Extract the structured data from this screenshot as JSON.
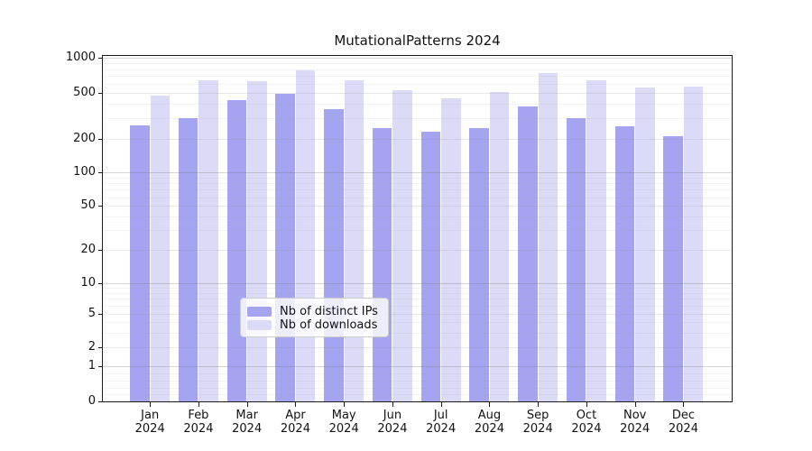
{
  "chart_data": {
    "type": "bar",
    "title": "MutationalPatterns 2024",
    "categories": [
      "Jan",
      "Feb",
      "Mar",
      "Apr",
      "May",
      "Jun",
      "Jul",
      "Aug",
      "Sep",
      "Oct",
      "Nov",
      "Dec"
    ],
    "year": "2024",
    "series": [
      {
        "name": "Nb of distinct IPs",
        "color": "#a4a4f0",
        "values": [
          260,
          300,
          435,
          495,
          365,
          248,
          230,
          248,
          380,
          300,
          256,
          210
        ]
      },
      {
        "name": "Nb of downloads",
        "color": "#dbdbf8",
        "values": [
          475,
          645,
          625,
          775,
          640,
          530,
          445,
          510,
          740,
          640,
          560,
          565
        ]
      }
    ],
    "y_ticks": [
      1000,
      500,
      200,
      100,
      50,
      20,
      10,
      5,
      2,
      1,
      0
    ],
    "ylim": [
      0,
      1000
    ],
    "y_scale": "log-like (linear below 1)",
    "grid": true,
    "legend_position": "lower center"
  }
}
